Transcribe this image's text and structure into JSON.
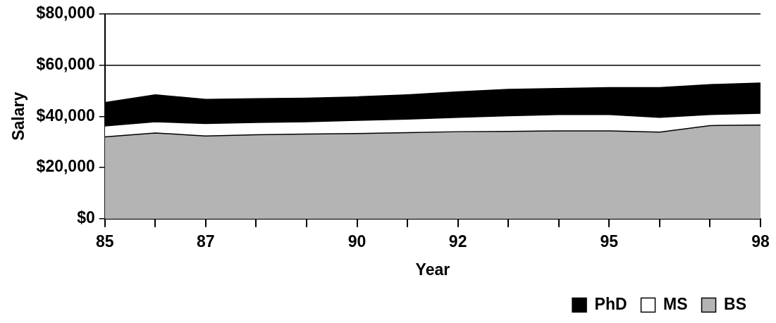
{
  "chart_data": {
    "type": "area",
    "xlabel": "Year",
    "ylabel": "Salary",
    "x": [
      85,
      86,
      87,
      88,
      89,
      90,
      91,
      92,
      93,
      94,
      95,
      96,
      97,
      98
    ],
    "series": [
      {
        "name": "PhD",
        "color": "#000000",
        "values": [
          45400,
          48400,
          46600,
          46900,
          47100,
          47600,
          48400,
          49600,
          50500,
          50900,
          51200,
          51200,
          52400,
          53000
        ]
      },
      {
        "name": "MS",
        "color": "#ffffff",
        "values": [
          36200,
          37900,
          37200,
          37600,
          37900,
          38400,
          38900,
          39600,
          40200,
          40700,
          40700,
          39600,
          40700,
          41200
        ]
      },
      {
        "name": "BS",
        "color": "#b4b4b4",
        "values": [
          32000,
          33500,
          32300,
          32800,
          33100,
          33300,
          33600,
          34000,
          34100,
          34300,
          34300,
          33800,
          36400,
          36600
        ]
      }
    ],
    "xlim": [
      85,
      98
    ],
    "xticks": [
      85,
      {
        "value": 86,
        "label": null
      },
      87,
      {
        "value": 88,
        "label": null
      },
      {
        "value": 89,
        "label": null
      },
      90,
      {
        "value": 91,
        "label": null
      },
      92,
      {
        "value": 93,
        "label": null
      },
      {
        "value": 94,
        "label": null
      },
      95,
      {
        "value": 96,
        "label": null
      },
      {
        "value": 97,
        "label": null
      },
      98
    ],
    "ylim": [
      0,
      80000
    ],
    "yticks": [
      {
        "value": 0,
        "label": "$0"
      },
      {
        "value": 20000,
        "label": "$20,000"
      },
      {
        "value": 40000,
        "label": "$40,000"
      },
      {
        "value": 60000,
        "label": "$60,000"
      },
      {
        "value": 80000,
        "label": "$80,000"
      }
    ],
    "grid": "y",
    "legend": "bottom right"
  }
}
